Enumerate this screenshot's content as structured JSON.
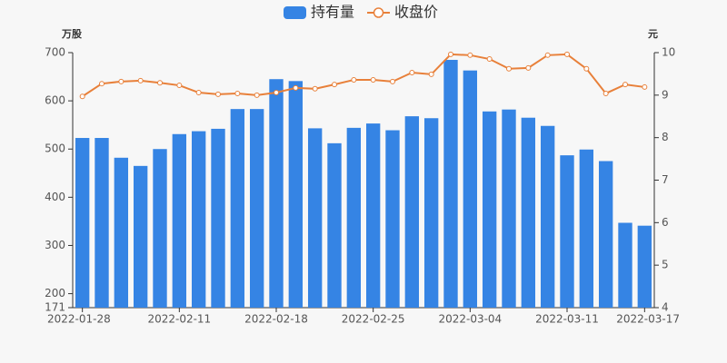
{
  "chart_data": {
    "type": "bar_line",
    "categories": [
      "2022-01-28",
      null,
      null,
      null,
      null,
      "2022-02-11",
      null,
      null,
      null,
      null,
      "2022-02-18",
      null,
      null,
      null,
      null,
      "2022-02-25",
      null,
      null,
      null,
      null,
      "2022-03-04",
      null,
      null,
      null,
      null,
      "2022-03-11",
      null,
      null,
      null,
      "2022-03-17"
    ],
    "series": [
      {
        "name": "持有量",
        "color": "#3584e4",
        "values": [
          523,
          523,
          482,
          465,
          500,
          531,
          537,
          542,
          583,
          583,
          645,
          641,
          543,
          512,
          544,
          553,
          539,
          568,
          564,
          685,
          663,
          578,
          582,
          565,
          548,
          487,
          499,
          475,
          347,
          341
        ]
      },
      {
        "name": "收盘价",
        "color": "#e8803a",
        "axis": "y2",
        "values": [
          8.97,
          9.27,
          9.32,
          9.34,
          9.29,
          9.23,
          9.06,
          9.02,
          9.04,
          9.0,
          9.06,
          9.17,
          9.15,
          9.25,
          9.36,
          9.36,
          9.32,
          9.53,
          9.49,
          9.96,
          9.94,
          9.85,
          9.62,
          9.64,
          9.94,
          9.96,
          9.62,
          9.04,
          9.25,
          9.19
        ]
      }
    ],
    "y_label": "万股",
    "y2_label": "元",
    "ylim": [
      171,
      700
    ],
    "yticks": [
      171,
      200,
      300,
      400,
      500,
      600,
      700
    ],
    "y2lim": [
      4,
      10
    ],
    "y2ticks": [
      4,
      5,
      6,
      7,
      8,
      9,
      10
    ],
    "legend": "top"
  }
}
